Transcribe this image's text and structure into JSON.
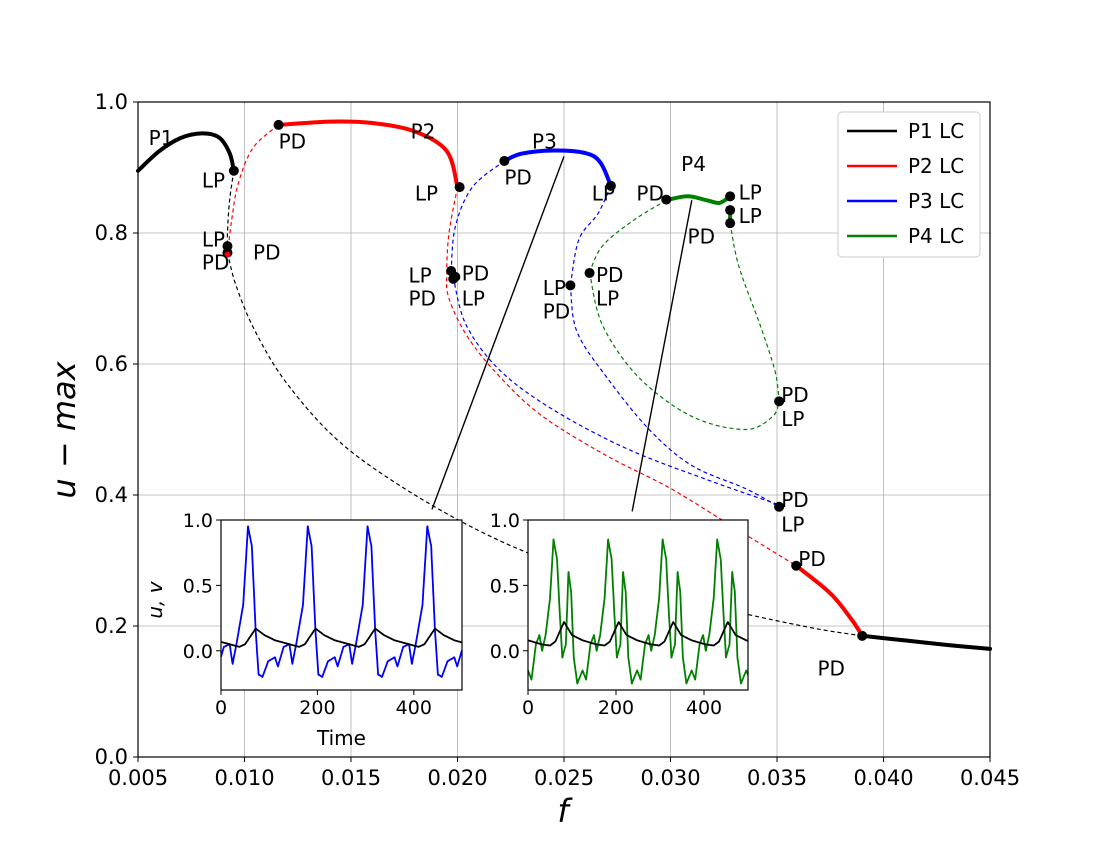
{
  "chart_data": {
    "type": "line",
    "main": {
      "xlabel": "f",
      "ylabel": "u − max",
      "xlim": [
        0.005,
        0.045
      ],
      "ylim": [
        0.0,
        1.0
      ],
      "xticks": [
        "0.005",
        "0.010",
        "0.015",
        "0.020",
        "0.025",
        "0.030",
        "0.035",
        "0.040",
        "0.045"
      ],
      "yticks": [
        "0.0",
        "0.2",
        "0.4",
        "0.6",
        "0.8",
        "1.0"
      ],
      "grid": true,
      "legend_position": "top-right",
      "series": [
        {
          "name": "P1 LC",
          "color": "#000000",
          "stable": [
            [
              [
                0.005,
                0.895
              ],
              [
                0.006,
                0.925
              ],
              [
                0.007,
                0.945
              ],
              [
                0.008,
                0.952
              ],
              [
                0.0088,
                0.946
              ],
              [
                0.0093,
                0.922
              ],
              [
                0.0095,
                0.895
              ]
            ],
            [
              [
                0.039,
                0.185
              ],
              [
                0.041,
                0.178
              ],
              [
                0.043,
                0.171
              ],
              [
                0.045,
                0.165
              ]
            ]
          ],
          "unstable": [
            [
              [
                0.0095,
                0.895
              ],
              [
                0.0093,
                0.85
              ],
              [
                0.0092,
                0.8
              ],
              [
                0.0092,
                0.77
              ]
            ],
            [
              [
                0.0092,
                0.77
              ],
              [
                0.0096,
                0.72
              ],
              [
                0.0105,
                0.65
              ],
              [
                0.012,
                0.57
              ],
              [
                0.0145,
                0.48
              ],
              [
                0.018,
                0.4
              ],
              [
                0.022,
                0.33
              ],
              [
                0.026,
                0.28
              ],
              [
                0.03,
                0.245
              ],
              [
                0.034,
                0.215
              ],
              [
                0.037,
                0.195
              ],
              [
                0.039,
                0.185
              ]
            ]
          ]
        },
        {
          "name": "P2 LC",
          "color": "#ff0000",
          "stable": [
            [
              [
                0.0116,
                0.965
              ],
              [
                0.014,
                0.97
              ],
              [
                0.016,
                0.968
              ],
              [
                0.018,
                0.955
              ],
              [
                0.0195,
                0.925
              ],
              [
                0.02,
                0.87
              ]
            ],
            [
              [
                0.0359,
                0.292
              ],
              [
                0.0375,
                0.25
              ],
              [
                0.0385,
                0.21
              ],
              [
                0.039,
                0.185
              ]
            ]
          ],
          "unstable": [
            [
              [
                0.0092,
                0.768
              ],
              [
                0.0094,
                0.82
              ],
              [
                0.0097,
                0.875
              ],
              [
                0.0104,
                0.93
              ],
              [
                0.0116,
                0.965
              ]
            ],
            [
              [
                0.02,
                0.87
              ],
              [
                0.0196,
                0.8
              ],
              [
                0.0195,
                0.74
              ],
              [
                0.0196,
                0.7
              ],
              [
                0.0205,
                0.64
              ],
              [
                0.022,
                0.58
              ],
              [
                0.024,
                0.52
              ],
              [
                0.027,
                0.46
              ],
              [
                0.03,
                0.41
              ],
              [
                0.033,
                0.35
              ],
              [
                0.0359,
                0.292
              ]
            ]
          ]
        },
        {
          "name": "P3 LC",
          "color": "#0000ff",
          "stable": [
            [
              [
                0.0222,
                0.91
              ],
              [
                0.023,
                0.921
              ],
              [
                0.0245,
                0.926
              ],
              [
                0.026,
                0.922
              ],
              [
                0.0267,
                0.908
              ],
              [
                0.0272,
                0.872
              ]
            ]
          ],
          "unstable": [
            [
              [
                0.0222,
                0.91
              ],
              [
                0.0207,
                0.87
              ],
              [
                0.0199,
                0.81
              ],
              [
                0.0197,
                0.742
              ]
            ],
            [
              [
                0.0272,
                0.872
              ],
              [
                0.0266,
                0.83
              ],
              [
                0.0257,
                0.79
              ],
              [
                0.0253,
                0.72
              ]
            ],
            [
              [
                0.0198,
                0.733
              ],
              [
                0.0204,
                0.66
              ],
              [
                0.022,
                0.59
              ],
              [
                0.0245,
                0.53
              ],
              [
                0.028,
                0.47
              ],
              [
                0.032,
                0.42
              ],
              [
                0.0351,
                0.385
              ]
            ],
            [
              [
                0.0253,
                0.72
              ],
              [
                0.0256,
                0.65
              ],
              [
                0.027,
                0.58
              ],
              [
                0.029,
                0.5
              ],
              [
                0.031,
                0.445
              ],
              [
                0.0335,
                0.41
              ],
              [
                0.0351,
                0.382
              ]
            ]
          ]
        },
        {
          "name": "P4 LC",
          "color": "#008000",
          "stable": [
            [
              [
                0.0298,
                0.85
              ],
              [
                0.0308,
                0.856
              ],
              [
                0.0317,
                0.85
              ],
              [
                0.0323,
                0.846
              ],
              [
                0.0328,
                0.856
              ]
            ],
            [
              [
                0.0328,
                0.835
              ],
              [
                0.0328,
                0.815
              ]
            ]
          ],
          "unstable": [
            [
              [
                0.0298,
                0.85
              ],
              [
                0.0282,
                0.818
              ],
              [
                0.0268,
                0.78
              ],
              [
                0.0262,
                0.74
              ]
            ],
            [
              [
                0.0262,
                0.74
              ],
              [
                0.0268,
                0.66
              ],
              [
                0.0285,
                0.58
              ],
              [
                0.031,
                0.52
              ],
              [
                0.0335,
                0.5
              ],
              [
                0.0348,
                0.52
              ],
              [
                0.0351,
                0.545
              ]
            ],
            [
              [
                0.0328,
                0.815
              ],
              [
                0.0332,
                0.75
              ],
              [
                0.0342,
                0.66
              ],
              [
                0.0349,
                0.59
              ],
              [
                0.0351,
                0.545
              ]
            ]
          ]
        }
      ],
      "points": [
        {
          "f": 0.0095,
          "u": 0.895
        },
        {
          "f": 0.0116,
          "u": 0.965
        },
        {
          "f": 0.0092,
          "u": 0.78
        },
        {
          "f": 0.0092,
          "u": 0.77
        },
        {
          "f": 0.0201,
          "u": 0.87
        },
        {
          "f": 0.0197,
          "u": 0.742
        },
        {
          "f": 0.0198,
          "u": 0.73
        },
        {
          "f": 0.0199,
          "u": 0.733
        },
        {
          "f": 0.0222,
          "u": 0.91
        },
        {
          "f": 0.0272,
          "u": 0.872
        },
        {
          "f": 0.0253,
          "u": 0.72
        },
        {
          "f": 0.0262,
          "u": 0.739
        },
        {
          "f": 0.0298,
          "u": 0.851
        },
        {
          "f": 0.0328,
          "u": 0.856
        },
        {
          "f": 0.0328,
          "u": 0.835
        },
        {
          "f": 0.0328,
          "u": 0.815
        },
        {
          "f": 0.0351,
          "u": 0.543
        },
        {
          "f": 0.0351,
          "u": 0.382
        },
        {
          "f": 0.0359,
          "u": 0.292
        },
        {
          "f": 0.039,
          "u": 0.185
        }
      ],
      "annotations": [
        {
          "text": "P1",
          "f": 0.0055,
          "u": 0.945
        },
        {
          "text": "LP",
          "f": 0.008,
          "u": 0.88
        },
        {
          "text": "PD",
          "f": 0.0116,
          "u": 0.94
        },
        {
          "text": "LP",
          "f": 0.008,
          "u": 0.79
        },
        {
          "text": "PD",
          "f": 0.008,
          "u": 0.755
        },
        {
          "text": "PD",
          "f": 0.0104,
          "u": 0.77
        },
        {
          "text": "P2",
          "f": 0.0178,
          "u": 0.955
        },
        {
          "text": "P3",
          "f": 0.0235,
          "u": 0.94
        },
        {
          "text": "PD",
          "f": 0.0222,
          "u": 0.885
        },
        {
          "text": "LP",
          "f": 0.018,
          "u": 0.86
        },
        {
          "text": "LP",
          "f": 0.0263,
          "u": 0.86
        },
        {
          "text": "LP",
          "f": 0.0177,
          "u": 0.735
        },
        {
          "text": "PD",
          "f": 0.0177,
          "u": 0.7
        },
        {
          "text": "PD",
          "f": 0.0202,
          "u": 0.738
        },
        {
          "text": "LP",
          "f": 0.0202,
          "u": 0.7
        },
        {
          "text": "LP",
          "f": 0.024,
          "u": 0.716
        },
        {
          "text": "PD",
          "f": 0.024,
          "u": 0.68
        },
        {
          "text": "PD",
          "f": 0.0265,
          "u": 0.736
        },
        {
          "text": "LP",
          "f": 0.0265,
          "u": 0.7
        },
        {
          "text": "P4",
          "f": 0.0305,
          "u": 0.905
        },
        {
          "text": "PD",
          "f": 0.0284,
          "u": 0.86
        },
        {
          "text": "PD",
          "f": 0.0308,
          "u": 0.795
        },
        {
          "text": "LP",
          "f": 0.0332,
          "u": 0.862
        },
        {
          "text": "LP",
          "f": 0.0332,
          "u": 0.826
        },
        {
          "text": "PD",
          "f": 0.0352,
          "u": 0.553
        },
        {
          "text": "LP",
          "f": 0.0352,
          "u": 0.516
        },
        {
          "text": "PD",
          "f": 0.0352,
          "u": 0.392
        },
        {
          "text": "LP",
          "f": 0.0352,
          "u": 0.355
        },
        {
          "text": "PD",
          "f": 0.036,
          "u": 0.302
        },
        {
          "text": "PD",
          "f": 0.0369,
          "u": 0.135
        }
      ],
      "pointer_lines": [
        {
          "from": [
            0.025,
            0.917
          ],
          "to": [
            0.0188,
            0.378
          ]
        },
        {
          "from": [
            0.031,
            0.85
          ],
          "to": [
            0.0282,
            0.375
          ]
        }
      ]
    },
    "insets": [
      {
        "xlabel": "Time",
        "ylabel": "u, v",
        "xlim": [
          0,
          500
        ],
        "ylim": [
          -0.3,
          1.0
        ],
        "xticks": [
          "0",
          "200",
          "400"
        ],
        "yticks": [
          "0.0",
          "0.5",
          "1.0"
        ],
        "series": [
          {
            "name": "u",
            "color": "#0000ff",
            "period": 124,
            "phase": 12,
            "shape": [
              [
                0,
                -0.05
              ],
              [
                6,
                -0.12
              ],
              [
                18,
                0.03
              ],
              [
                30,
                0.05
              ],
              [
                36,
                -0.1
              ],
              [
                44,
                0.05
              ],
              [
                58,
                0.35
              ],
              [
                68,
                0.95
              ],
              [
                76,
                0.8
              ],
              [
                84,
                0.15
              ],
              [
                90,
                -0.18
              ],
              [
                98,
                -0.2
              ],
              [
                110,
                -0.08
              ],
              [
                124,
                -0.05
              ]
            ]
          },
          {
            "name": "v",
            "color": "#000000",
            "period": 124,
            "phase": 12,
            "shape": [
              [
                0,
                0.08
              ],
              [
                30,
                0.05
              ],
              [
                50,
                0.03
              ],
              [
                62,
                0.05
              ],
              [
                84,
                0.17
              ],
              [
                102,
                0.12
              ],
              [
                124,
                0.08
              ]
            ]
          }
        ]
      },
      {
        "xlabel": "",
        "ylabel": "",
        "xlim": [
          0,
          500
        ],
        "ylim": [
          -0.3,
          1.0
        ],
        "xticks": [
          "0",
          "200",
          "400"
        ],
        "yticks": [
          "0.0",
          "0.5",
          "1.0"
        ],
        "series": [
          {
            "name": "u",
            "color": "#008000",
            "period": 124,
            "phase": 0,
            "shape": [
              [
                0,
                -0.15
              ],
              [
                8,
                -0.22
              ],
              [
                18,
                0.05
              ],
              [
                26,
                0.12
              ],
              [
                32,
                0.0
              ],
              [
                40,
                0.12
              ],
              [
                50,
                0.4
              ],
              [
                58,
                0.85
              ],
              [
                66,
                0.7
              ],
              [
                72,
                0.3
              ],
              [
                78,
                -0.05
              ],
              [
                86,
                0.05
              ],
              [
                92,
                0.6
              ],
              [
                98,
                0.45
              ],
              [
                104,
                -0.05
              ],
              [
                112,
                -0.25
              ],
              [
                124,
                -0.15
              ]
            ]
          },
          {
            "name": "v",
            "color": "#000000",
            "period": 124,
            "phase": 0,
            "shape": [
              [
                0,
                0.08
              ],
              [
                30,
                0.05
              ],
              [
                50,
                0.04
              ],
              [
                62,
                0.07
              ],
              [
                82,
                0.22
              ],
              [
                100,
                0.12
              ],
              [
                124,
                0.08
              ]
            ]
          }
        ]
      }
    ]
  }
}
